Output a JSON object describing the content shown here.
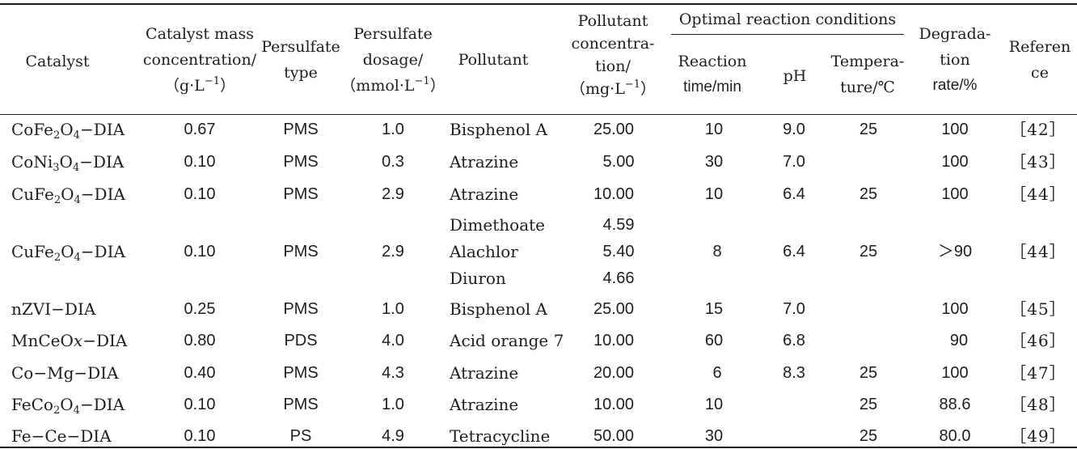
{
  "headers": {
    "catalyst": "Catalyst",
    "mass_l1": "Catalyst mass",
    "mass_l2": "concentration/",
    "mass_l3": "（g·L",
    "mass_sup": "−1",
    "mass_l3_end": "）",
    "ps_type_l1": "Persulfate",
    "ps_type_l2": "type",
    "ps_dose_l1": "Persulfate",
    "ps_dose_l2": "dosage/",
    "ps_dose_l3": "（mmol·L",
    "ps_dose_sup": "−1",
    "ps_dose_l3_end": "）",
    "pollutant": "Pollutant",
    "pconc_l1": "Pollutant",
    "pconc_l2": "concentra-",
    "pconc_l3": "tion/",
    "pconc_l4": "（mg·L",
    "pconc_sup": "−1",
    "pconc_l4_end": "）",
    "optimal": "Optimal reaction conditions",
    "time_l1": "Reaction",
    "time_l2": "time/min",
    "ph": "pH",
    "temp_l1": "Tempera-",
    "temp_l2": "ture/℃",
    "deg_l1": "Degrada-",
    "deg_l2": "tion",
    "deg_l3": "rate/%",
    "ref_l1": "Referen",
    "ref_l2": "ce"
  },
  "rows": [
    {
      "cat_a": "CoFe",
      "cat_s1": "2",
      "cat_b": "O",
      "cat_s2": "4",
      "cat_c": "−DIA",
      "mass": "0.67",
      "type": "PMS",
      "dose": "1.0",
      "pollutant": "Bisphenol A",
      "conc": "25.00",
      "time": "10",
      "ph": "9.0",
      "temp": "25",
      "deg": "100",
      "ref": "［42］"
    },
    {
      "cat_a": "CoNi",
      "cat_s1": "3",
      "cat_b": "O",
      "cat_s2": "4",
      "cat_c": "−DIA",
      "mass": "0.10",
      "type": "PMS",
      "dose": "0.3",
      "pollutant": "Atrazine",
      "conc": "5.00",
      "time": "30",
      "ph": "7.0",
      "temp": "",
      "deg": "100",
      "ref": "［43］"
    },
    {
      "cat_a": "CuFe",
      "cat_s1": "2",
      "cat_b": "O",
      "cat_s2": "4",
      "cat_c": "−DIA",
      "mass": "0.10",
      "type": "PMS",
      "dose": "2.9",
      "pollutant": "Atrazine",
      "conc": "10.00",
      "time": "10",
      "ph": "6.4",
      "temp": "25",
      "deg": "100",
      "ref": "［44］"
    },
    {
      "cat_a": "CuFe",
      "cat_s1": "2",
      "cat_b": "O",
      "cat_s2": "4",
      "cat_c": "−DIA",
      "mass": "0.10",
      "type": "PMS",
      "dose": "2.9",
      "pollutants": [
        "Dimethoate",
        "Alachlor",
        "Diuron"
      ],
      "concs": [
        "4.59",
        "5.40",
        "4.66"
      ],
      "time": "8",
      "ph": "6.4",
      "temp": "25",
      "deg": "＞90",
      "ref": "［44］"
    },
    {
      "cat": "nZVI−DIA",
      "mass": "0.25",
      "type": "PMS",
      "dose": "1.0",
      "pollutant": "Bisphenol A",
      "conc": "25.00",
      "time": "15",
      "ph": "7.0",
      "temp": "",
      "deg": "100",
      "ref": "［45］"
    },
    {
      "cat_a": "MnCeO",
      "cat_x": "x",
      "cat_c": "−DIA",
      "mass": "0.80",
      "type": "PDS",
      "dose": "4.0",
      "pollutant": "Acid orange 7",
      "conc": "10.00",
      "time": "60",
      "ph": "6.8",
      "temp": "",
      "deg": "90",
      "ref": "［46］"
    },
    {
      "cat": "Co−Mg−DIA",
      "mass": "0.40",
      "type": "PMS",
      "dose": "4.3",
      "pollutant": "Atrazine",
      "conc": "20.00",
      "time": "6",
      "ph": "8.3",
      "temp": "25",
      "deg": "100",
      "ref": "［47］"
    },
    {
      "cat_a": "FeCo",
      "cat_s1": "2",
      "cat_b": "O",
      "cat_s2": "4",
      "cat_c": "−DIA",
      "mass": "0.10",
      "type": "PMS",
      "dose": "1.0",
      "pollutant": "Atrazine",
      "conc": "10.00",
      "time": "10",
      "ph": "",
      "temp": "25",
      "deg": "88.6",
      "ref": "［48］"
    },
    {
      "cat": "Fe−Ce−DIA",
      "mass": "0.10",
      "type": "PS",
      "dose": "4.9",
      "pollutant": "Tetracycline",
      "conc": "50.00",
      "time": "30",
      "ph": "",
      "temp": "25",
      "deg": "80.0",
      "ref": "［49］"
    }
  ]
}
